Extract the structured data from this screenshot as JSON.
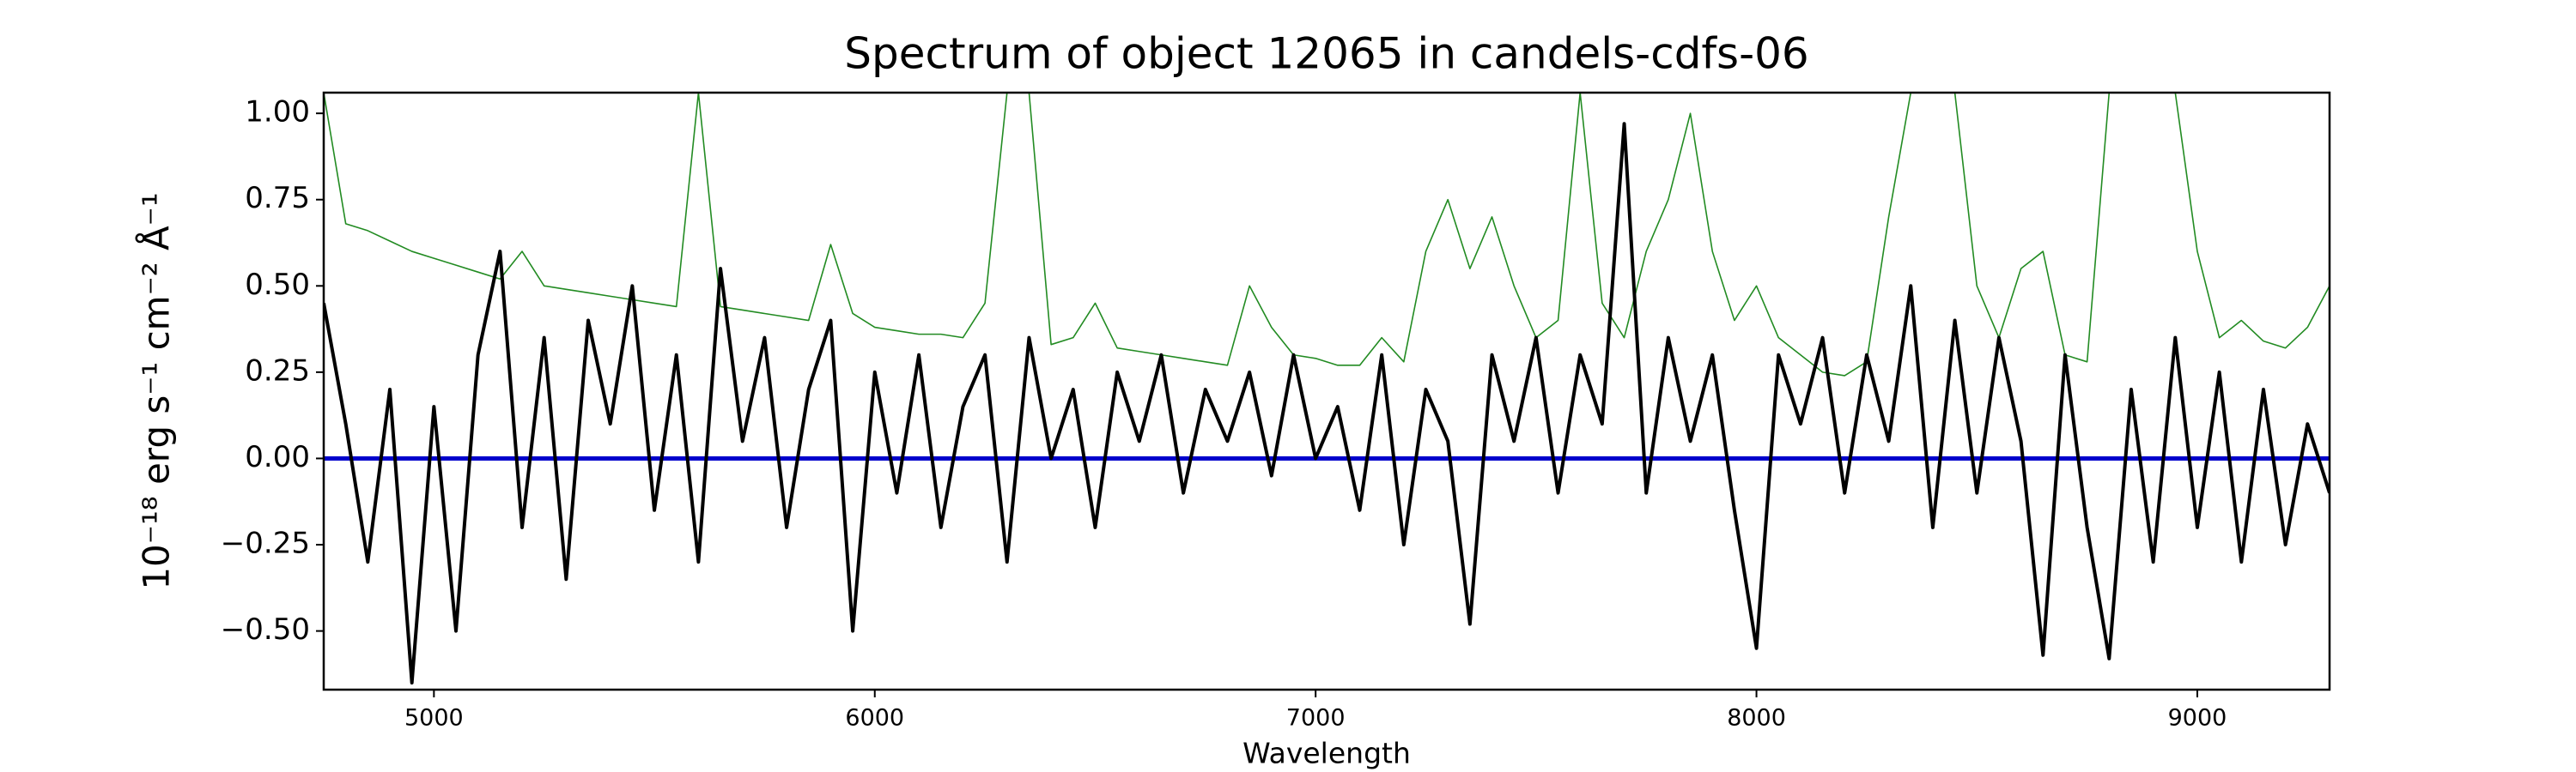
{
  "chart_data": {
    "type": "line",
    "title": "Spectrum of object 12065 in candels-cdfs-06",
    "x_label": "Wavelength",
    "y_label": "10⁻¹⁸ erg s⁻¹ cm⁻² Å⁻¹",
    "x": [
      4750,
      4800,
      4850,
      4900,
      4950,
      5000,
      5050,
      5100,
      5150,
      5200,
      5250,
      5300,
      5350,
      5400,
      5450,
      5500,
      5550,
      5600,
      5650,
      5700,
      5750,
      5800,
      5850,
      5900,
      5950,
      6000,
      6050,
      6100,
      6150,
      6200,
      6250,
      6300,
      6350,
      6400,
      6450,
      6500,
      6550,
      6600,
      6650,
      6700,
      6750,
      6800,
      6850,
      6900,
      6950,
      7000,
      7050,
      7100,
      7150,
      7200,
      7250,
      7300,
      7350,
      7400,
      7450,
      7500,
      7550,
      7600,
      7650,
      7700,
      7750,
      7800,
      7850,
      7900,
      7950,
      8000,
      8050,
      8100,
      8150,
      8200,
      8250,
      8300,
      8350,
      8400,
      8450,
      8500,
      8550,
      8600,
      8650,
      8700,
      8750,
      8800,
      8850,
      8900,
      8950,
      9000,
      9050,
      9100,
      9150,
      9200,
      9250,
      9300
    ],
    "series": [
      {
        "color": "#228b22",
        "width": 1.6,
        "values": [
          1.06,
          0.68,
          0.66,
          0.63,
          0.6,
          0.58,
          0.56,
          0.54,
          0.52,
          0.6,
          0.5,
          0.49,
          0.48,
          0.47,
          0.46,
          0.45,
          0.44,
          1.06,
          0.44,
          0.43,
          0.42,
          0.41,
          0.4,
          0.62,
          0.42,
          0.38,
          0.37,
          0.36,
          0.36,
          0.35,
          0.45,
          1.06,
          1.06,
          0.33,
          0.35,
          0.45,
          0.32,
          0.31,
          0.3,
          0.29,
          0.28,
          0.27,
          0.5,
          0.38,
          0.3,
          0.29,
          0.27,
          0.27,
          0.35,
          0.28,
          0.6,
          0.75,
          0.55,
          0.7,
          0.5,
          0.35,
          0.4,
          1.06,
          0.45,
          0.35,
          0.6,
          0.75,
          1.0,
          0.6,
          0.4,
          0.5,
          0.35,
          0.3,
          0.25,
          0.24,
          0.28,
          0.7,
          1.06,
          1.06,
          1.06,
          0.5,
          0.35,
          0.55,
          0.6,
          0.3,
          0.28,
          1.06,
          1.06,
          1.06,
          1.06,
          0.6,
          0.35,
          0.4,
          0.34,
          0.32,
          0.38,
          0.5
        ]
      },
      {
        "color": "#0000cc",
        "width": 5,
        "x": [
          4750,
          9300
        ],
        "values": [
          0,
          0
        ]
      },
      {
        "color": "#000000",
        "width": 4,
        "values": [
          0.45,
          0.1,
          -0.3,
          0.2,
          -0.65,
          0.15,
          -0.5,
          0.3,
          0.6,
          -0.2,
          0.35,
          -0.35,
          0.4,
          0.1,
          0.5,
          -0.15,
          0.3,
          -0.3,
          0.55,
          0.05,
          0.35,
          -0.2,
          0.2,
          0.4,
          -0.5,
          0.25,
          -0.1,
          0.3,
          -0.2,
          0.15,
          0.3,
          -0.3,
          0.35,
          0,
          0.2,
          -0.2,
          0.25,
          0.05,
          0.3,
          -0.1,
          0.2,
          0.05,
          0.25,
          -0.05,
          0.3,
          0,
          0.15,
          -0.15,
          0.3,
          -0.25,
          0.2,
          0.05,
          -0.48,
          0.3,
          0.05,
          0.35,
          -0.1,
          0.3,
          0.1,
          0.97,
          -0.1,
          0.35,
          0.05,
          0.3,
          -0.15,
          -0.55,
          0.3,
          0.1,
          0.35,
          -0.1,
          0.3,
          0.05,
          0.5,
          -0.2,
          0.4,
          -0.1,
          0.35,
          0.05,
          -0.57,
          0.3,
          -0.2,
          -0.58,
          0.2,
          -0.3,
          0.35,
          -0.2,
          0.25,
          -0.3,
          0.2,
          -0.25,
          0.1,
          -0.1
        ]
      }
    ],
    "xlim": [
      4750,
      9300
    ],
    "ylim": [
      -0.67,
      1.06
    ],
    "xticks": [
      5000,
      6000,
      7000,
      8000,
      9000
    ],
    "yticks": [
      {
        "value": -0.5,
        "label": "−0.50"
      },
      {
        "value": -0.25,
        "label": "−0.25"
      },
      {
        "value": 0,
        "label": "0.00"
      },
      {
        "value": 0.25,
        "label": "0.25"
      },
      {
        "value": 0.5,
        "label": "0.50"
      },
      {
        "value": 0.75,
        "label": "0.75"
      },
      {
        "value": 1,
        "label": "1.00"
      }
    ],
    "grid": false
  }
}
